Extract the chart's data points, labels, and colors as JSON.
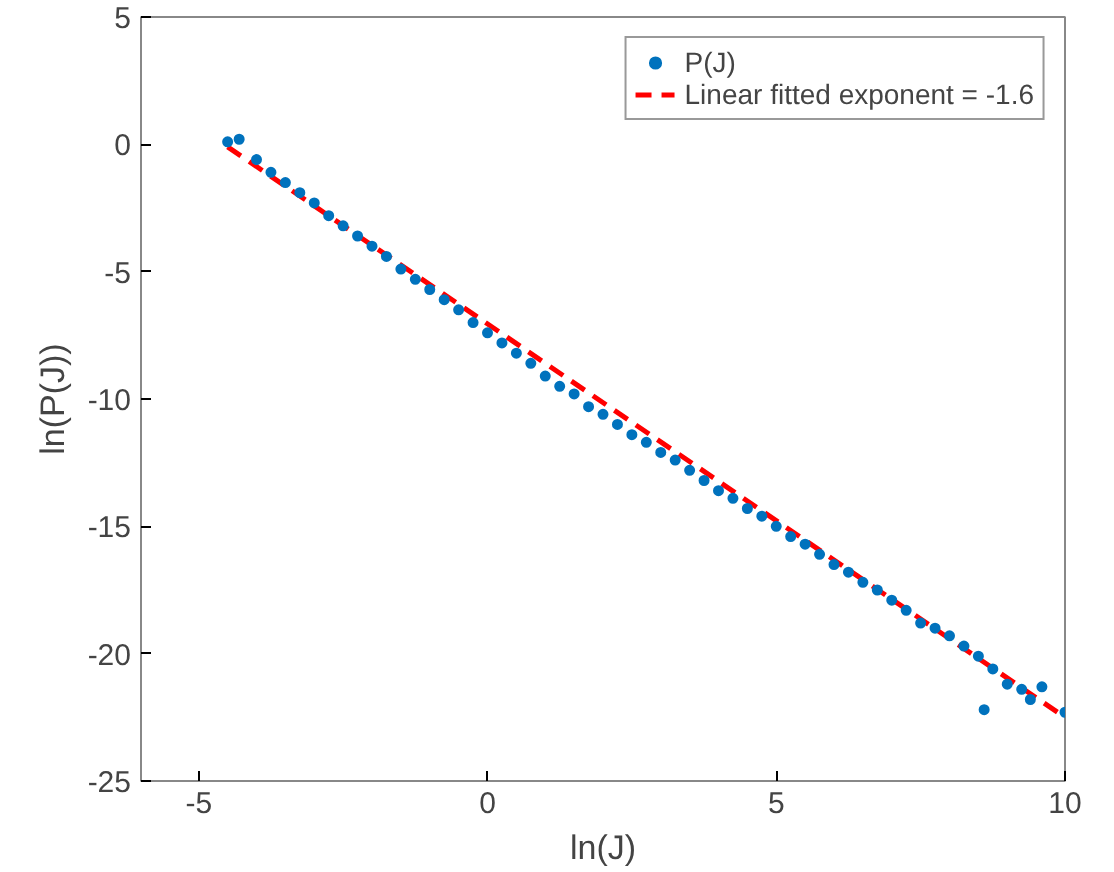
{
  "chart_data": {
    "type": "scatter",
    "xlabel": "ln(J)",
    "ylabel": "ln(P(J))",
    "xlim": [
      -6,
      10
    ],
    "ylim": [
      -25,
      5
    ],
    "xticks": [
      -5,
      0,
      5,
      10
    ],
    "yticks": [
      -25,
      -20,
      -15,
      -10,
      -5,
      0,
      5
    ],
    "grid": false,
    "legend": "top right",
    "series": [
      {
        "name": "P(J)",
        "color": "#0072bd",
        "marker": "circle",
        "x": [
          -4.5,
          -4.3,
          -4.0,
          -3.75,
          -3.5,
          -3.25,
          -3.0,
          -2.75,
          -2.5,
          -2.25,
          -2.0,
          -1.75,
          -1.5,
          -1.25,
          -1.0,
          -0.75,
          -0.5,
          -0.25,
          0,
          0.25,
          0.5,
          0.75,
          1.0,
          1.25,
          1.5,
          1.75,
          2.0,
          2.25,
          2.5,
          2.75,
          3.0,
          3.25,
          3.5,
          3.75,
          4.0,
          4.25,
          4.5,
          4.75,
          5.0,
          5.25,
          5.5,
          5.75,
          6.0,
          6.25,
          6.5,
          6.75,
          7.0,
          7.25,
          7.5,
          7.75,
          8.0,
          8.25,
          8.5,
          8.6,
          8.75,
          9.0,
          9.25,
          9.4,
          9.6,
          10.0
        ],
        "values": [
          0.1,
          0.2,
          -0.6,
          -1.1,
          -1.5,
          -1.9,
          -2.3,
          -2.8,
          -3.2,
          -3.6,
          -4.0,
          -4.4,
          -4.9,
          -5.3,
          -5.7,
          -6.1,
          -6.5,
          -7.0,
          -7.4,
          -7.8,
          -8.2,
          -8.6,
          -9.1,
          -9.5,
          -9.8,
          -10.3,
          -10.6,
          -11.0,
          -11.4,
          -11.7,
          -12.1,
          -12.4,
          -12.8,
          -13.2,
          -13.6,
          -13.9,
          -14.3,
          -14.6,
          -15.0,
          -15.4,
          -15.7,
          -16.1,
          -16.5,
          -16.8,
          -17.2,
          -17.5,
          -17.9,
          -18.3,
          -18.8,
          -19.0,
          -19.3,
          -19.7,
          -20.1,
          -22.2,
          -20.6,
          -21.2,
          -21.4,
          -21.8,
          -21.3,
          -22.3
        ]
      },
      {
        "name": "Linear fitted exponent = -1.6",
        "type": "line",
        "color": "#ff0000",
        "line_style": "dashed",
        "marker": "none",
        "x": [
          -4.5,
          10
        ],
        "values": [
          -0.1,
          -22.5
        ]
      }
    ]
  }
}
